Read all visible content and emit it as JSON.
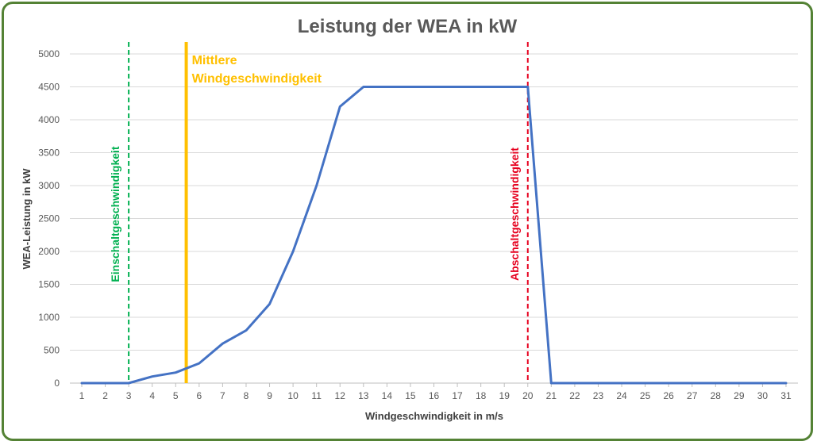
{
  "chart_data": {
    "type": "line",
    "title": "Leistung der WEA in kW",
    "xlabel": "Windgeschwindigkeit in m/s",
    "ylabel": "WEA-Leistung in kW",
    "x": [
      1,
      2,
      3,
      4,
      5,
      6,
      7,
      8,
      9,
      10,
      11,
      12,
      13,
      14,
      15,
      16,
      17,
      18,
      19,
      20,
      21,
      22,
      23,
      24,
      25,
      26,
      27,
      28,
      29,
      30,
      31
    ],
    "series": [
      {
        "values": [
          0,
          0,
          0,
          100,
          160,
          300,
          600,
          800,
          1200,
          2000,
          3000,
          4200,
          4500,
          4500,
          4500,
          4500,
          4500,
          4500,
          4500,
          4500,
          0,
          0,
          0,
          0,
          0,
          0,
          0,
          0,
          0,
          0,
          0
        ],
        "color": "#4472C4"
      }
    ],
    "ylim": [
      0,
      5000
    ],
    "yticks": [
      0,
      500,
      1000,
      1500,
      2000,
      2500,
      3000,
      3500,
      4000,
      4500,
      5000
    ],
    "grid": "horizontal",
    "annotations": [
      {
        "label": "Einschaltgeschwindigkeit",
        "x": 3,
        "style": "dashed",
        "color": "#00B050"
      },
      {
        "label": "Mittlere Windgeschwindigkeit",
        "lines": [
          "Mittlere",
          "Windgeschwindigkeit"
        ],
        "x": 5.45,
        "style": "solid",
        "color": "#FFC000"
      },
      {
        "label": "Abschaltgeschwindigkeit",
        "x": 20,
        "style": "dashed",
        "color": "#E6001E"
      }
    ]
  },
  "colors": {
    "border": "#548235",
    "grid": "#D9D9D9",
    "axis": "#BFBFBF",
    "line": "#4472C4"
  }
}
